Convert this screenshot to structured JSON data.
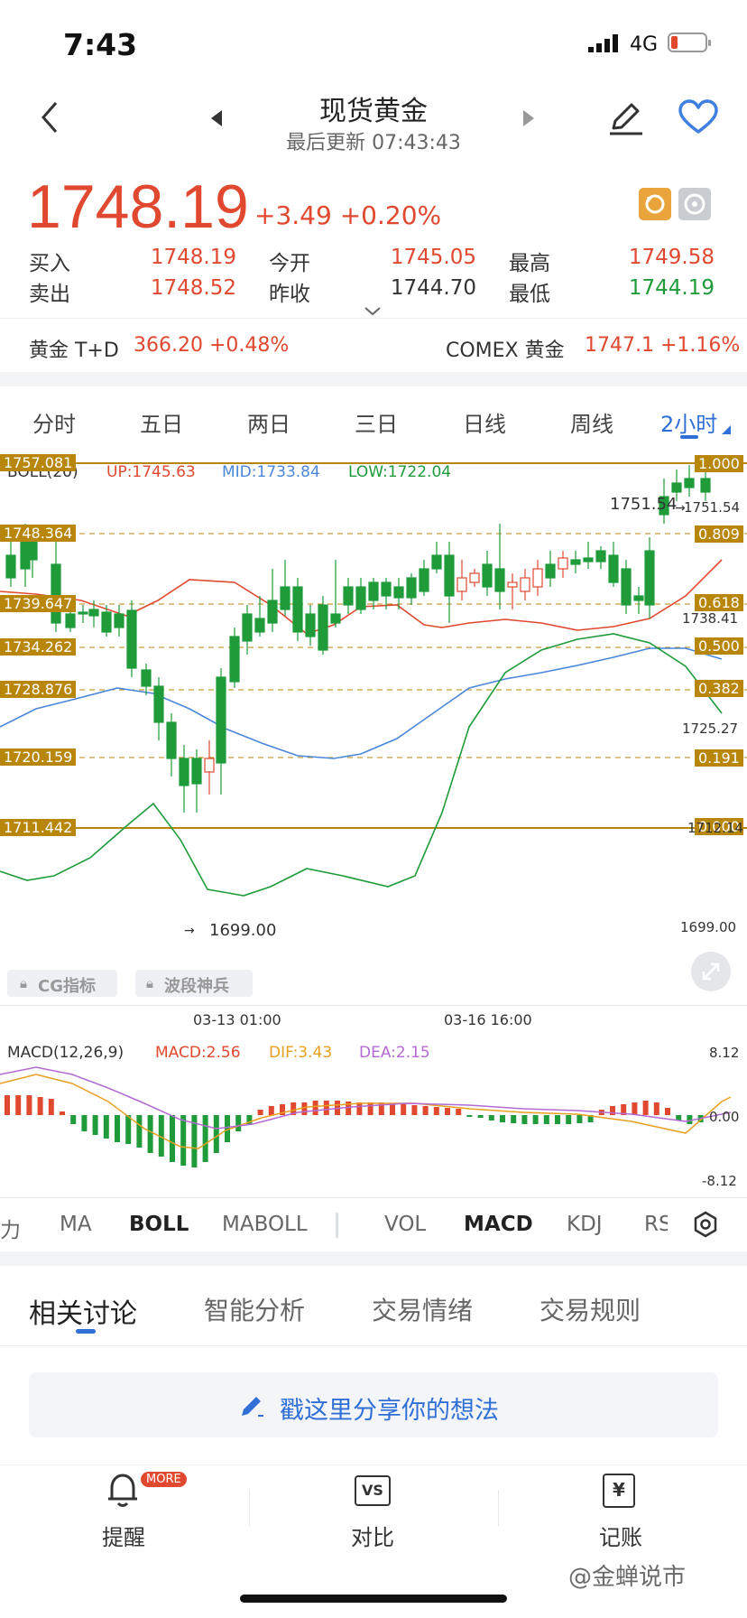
{
  "status": {
    "time": "7:43",
    "network": "4G"
  },
  "header": {
    "title": "现货黄金",
    "updated": "最后更新 07:43:43"
  },
  "quote": {
    "price": "1748.19",
    "change": "+3.49 +0.20%",
    "rows": [
      {
        "l1": "买入",
        "v1": "1748.19",
        "l2": "今开",
        "v2": "1745.05",
        "l3": "最高",
        "v3": "1749.58"
      },
      {
        "l1": "卖出",
        "v1": "1748.52",
        "l2": "昨收",
        "v2": "1744.70",
        "l3": "最低",
        "v3": "1744.19"
      }
    ]
  },
  "related": {
    "left_name": "黄金 T+D",
    "left_value": "366.20 +0.48%",
    "right_name": "COMEX 黄金",
    "right_value": "1747.1 +1.16%"
  },
  "period_tabs": [
    "分时",
    "五日",
    "两日",
    "三日",
    "日线",
    "周线",
    "2小时"
  ],
  "active_period": "2小时",
  "chart": {
    "boll_title": "BOLL(20)",
    "up": "UP:1745.63",
    "mid": "MID:1733.84",
    "low": "LOW:1722.04",
    "left_levels": [
      "1757.081",
      "1748.364",
      "1739.647",
      "1734.262",
      "1728.876",
      "1720.159",
      "1711.442"
    ],
    "right_levels": [
      "1.000",
      "0.809",
      "0.618",
      "0.500",
      "0.382",
      "0.191",
      "0.000"
    ],
    "right_axis": [
      "1751.54",
      "1738.41",
      "1725.27",
      "1712.14",
      "1699.00"
    ],
    "max_label": "1751.54",
    "min_label": "1699.00",
    "badges": [
      "CG指标",
      "波段神兵"
    ],
    "dates": [
      "03-13 01:00",
      "03-16 16:00"
    ],
    "macd_title": "MACD(12,26,9)",
    "macd": "MACD:2.56",
    "dif": "DIF:3.43",
    "dea": "DEA:2.15",
    "macd_axis": [
      "8.12",
      "0.00",
      "-8.12"
    ]
  },
  "indicator_tabs": [
    "力",
    "MA",
    "BOLL",
    "MABOLL",
    "VOL",
    "MACD",
    "KDJ",
    "RS"
  ],
  "discussion_tabs": [
    "相关讨论",
    "智能分析",
    "交易情绪",
    "交易规则"
  ],
  "share_placeholder": "戳这里分享你的想法",
  "bottom_nav": [
    {
      "label": "提醒",
      "badge": "MORE"
    },
    {
      "label": "对比",
      "icon_text": "VS"
    },
    {
      "label": "记账",
      "icon_text": "¥"
    }
  ],
  "watermark": "@金蝉说市",
  "colors": {
    "up": "#e0492f",
    "down": "#1f9b3a",
    "accent": "#2f6fd6",
    "fib": "#b8860b"
  }
}
